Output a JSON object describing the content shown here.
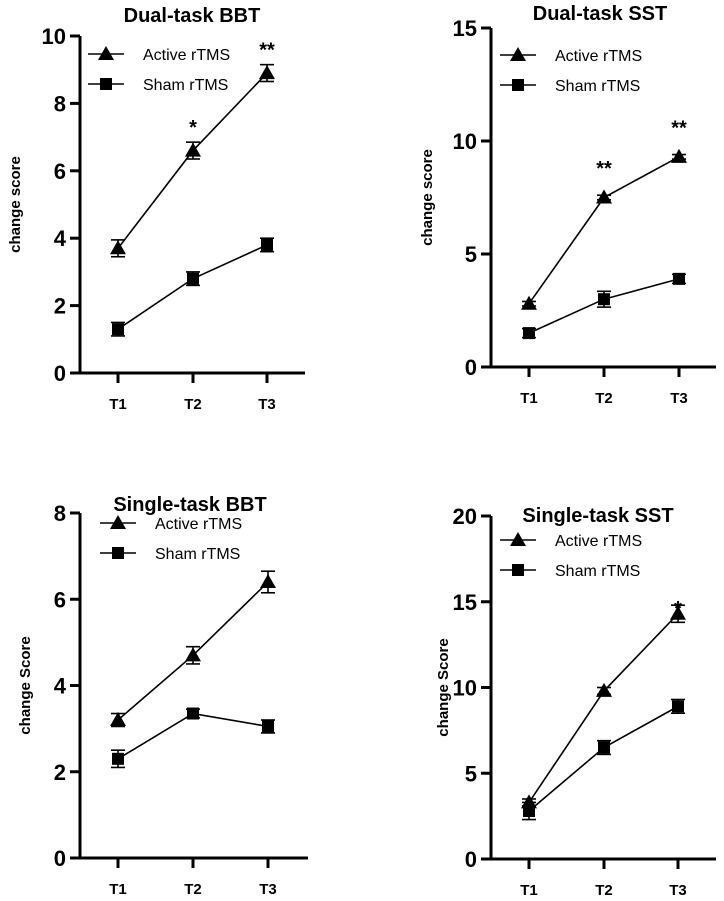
{
  "chart_data": [
    {
      "type": "line",
      "title": "Dual-task BBT",
      "xlabel": "",
      "ylabel": "change score",
      "categories": [
        "T1",
        "T2",
        "T3"
      ],
      "ylim": [
        0,
        10
      ],
      "yticks": [
        0,
        2,
        4,
        6,
        8,
        10
      ],
      "grid": false,
      "legend": "top-left",
      "series": [
        {
          "name": "Active rTMS",
          "marker": "triangle",
          "values": [
            3.7,
            6.6,
            8.9
          ],
          "errors": [
            0.25,
            0.25,
            0.25
          ]
        },
        {
          "name": "Sham rTMS",
          "marker": "square",
          "values": [
            1.3,
            2.8,
            3.8
          ],
          "errors": [
            0.2,
            0.2,
            0.2
          ]
        }
      ],
      "annotations": [
        {
          "x": "T2",
          "text": "*"
        },
        {
          "x": "T3",
          "text": "**"
        }
      ]
    },
    {
      "type": "line",
      "title": "Dual-task SST",
      "xlabel": "",
      "ylabel": "change score",
      "categories": [
        "T1",
        "T2",
        "T3"
      ],
      "ylim": [
        0,
        15
      ],
      "yticks": [
        0,
        5,
        10,
        15
      ],
      "grid": false,
      "legend": "top-left",
      "series": [
        {
          "name": "Active rTMS",
          "marker": "triangle",
          "values": [
            2.8,
            7.5,
            9.3
          ],
          "errors": [
            0.1,
            0.1,
            0.1
          ]
        },
        {
          "name": "Sham rTMS",
          "marker": "square",
          "values": [
            1.5,
            3.0,
            3.9
          ],
          "errors": [
            0.2,
            0.35,
            0.2
          ]
        }
      ],
      "annotations": [
        {
          "x": "T2",
          "text": "**"
        },
        {
          "x": "T3",
          "text": "**"
        }
      ]
    },
    {
      "type": "line",
      "title": "Single-task BBT",
      "xlabel": "",
      "ylabel": "change Score",
      "categories": [
        "T1",
        "T2",
        "T3"
      ],
      "ylim": [
        0,
        8
      ],
      "yticks": [
        0,
        2,
        4,
        6,
        8
      ],
      "grid": false,
      "legend": "top-left",
      "series": [
        {
          "name": "Active rTMS",
          "marker": "triangle",
          "values": [
            3.2,
            4.7,
            6.4
          ],
          "errors": [
            0.15,
            0.2,
            0.25
          ]
        },
        {
          "name": "Sham rTMS",
          "marker": "square",
          "values": [
            2.3,
            3.35,
            3.05
          ],
          "errors": [
            0.2,
            0.1,
            0.15
          ]
        }
      ],
      "annotations": []
    },
    {
      "type": "line",
      "title": "Single-task SST",
      "xlabel": "",
      "ylabel": "change Score",
      "categories": [
        "T1",
        "T2",
        "T3"
      ],
      "ylim": [
        0,
        20
      ],
      "yticks": [
        0,
        5,
        10,
        15,
        20
      ],
      "grid": false,
      "legend": "top-left",
      "series": [
        {
          "name": "Active rTMS",
          "marker": "triangle",
          "values": [
            3.3,
            9.8,
            14.3
          ],
          "errors": [
            0.2,
            0.2,
            0.5
          ]
        },
        {
          "name": "Sham rTMS",
          "marker": "square",
          "values": [
            2.8,
            6.5,
            8.9
          ],
          "errors": [
            0.5,
            0.4,
            0.4
          ]
        }
      ],
      "annotations": [
        {
          "x": "T3",
          "text": "*"
        }
      ]
    }
  ]
}
